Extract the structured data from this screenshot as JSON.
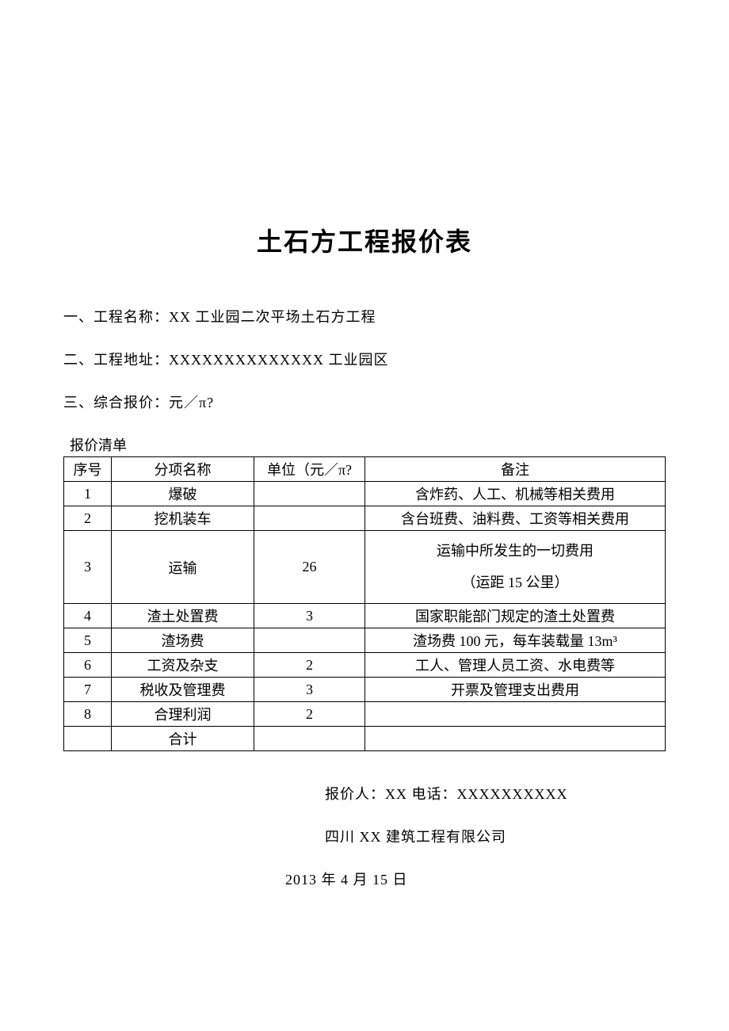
{
  "title": "土石方工程报价表",
  "info": {
    "line1": "一、工程名称：XX 工业园二次平场土石方工程",
    "line2": "二、工程地址：XXXXXXXXXXXXXX 工业园区",
    "line3": "三、综合报价：元／π?"
  },
  "table_caption": "报价清单",
  "table": {
    "headers": {
      "seq": "序号",
      "name": "分项名称",
      "unit": "单位（元／π?",
      "note": "备注"
    },
    "rows": [
      {
        "seq": "1",
        "name": "爆破",
        "unit": "",
        "note": "含炸药、人工、机械等相关费用"
      },
      {
        "seq": "2",
        "name": "挖机装车",
        "unit": "",
        "note": "含台班费、油料费、工资等相关费用"
      },
      {
        "seq": "3",
        "name": "运输",
        "unit": "26",
        "note": "运输中所发生的一切费用\n（运距 15 公里）"
      },
      {
        "seq": "4",
        "name": "渣土处置费",
        "unit": "3",
        "note": "国家职能部门规定的渣土处置费"
      },
      {
        "seq": "5",
        "name": "渣场费",
        "unit": "",
        "note": "渣场费 100 元，每车装载量 13m³"
      },
      {
        "seq": "6",
        "name": "工资及杂支",
        "unit": "2",
        "note": "工人、管理人员工资、水电费等"
      },
      {
        "seq": "7",
        "name": "税收及管理费",
        "unit": "3",
        "note": "开票及管理支出费用"
      },
      {
        "seq": "8",
        "name": "合理利润",
        "unit": "2",
        "note": ""
      }
    ],
    "total_row": {
      "seq": "",
      "name": "合计",
      "unit": "",
      "note": ""
    }
  },
  "footer": {
    "line1": "报价人：XX 电话：XXXXXXXXXX",
    "line2": "四川 XX 建筑工程有限公司",
    "date": "2013 年 4 月 15 日"
  },
  "colors": {
    "background": "#ffffff",
    "text": "#000000",
    "border": "#000000"
  },
  "fonts": {
    "title_size": 32,
    "body_size": 18,
    "family": "SimSun"
  }
}
